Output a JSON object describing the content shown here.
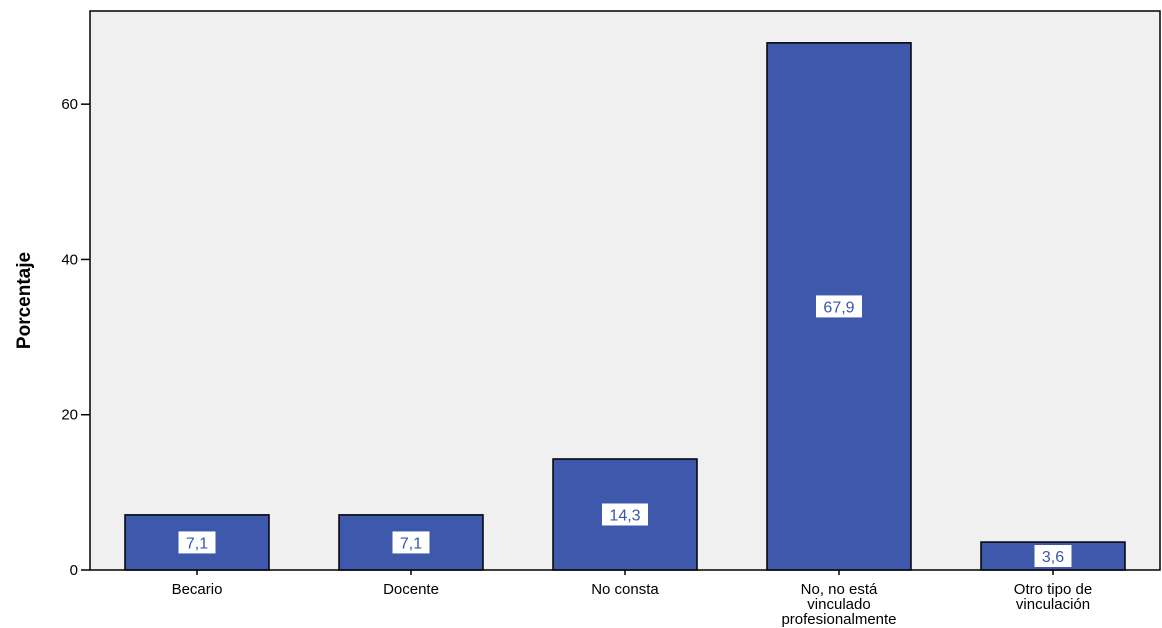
{
  "chart_data": {
    "type": "bar",
    "categories": [
      "Becario",
      "Docente",
      "No consta",
      "No, no está vinculado profesionalmente",
      "Otro tipo de vinculación"
    ],
    "category_lines": [
      [
        "Becario"
      ],
      [
        "Docente"
      ],
      [
        "No consta"
      ],
      [
        "No, no está",
        "vinculado",
        "profesionalmente"
      ],
      [
        "Otro tipo de",
        "vinculación"
      ]
    ],
    "values": [
      7.1,
      7.1,
      14.3,
      67.9,
      3.6
    ],
    "value_labels": [
      "7,1",
      "7,1",
      "14,3",
      "67,9",
      "3,6"
    ],
    "ylabel": "Porcentaje",
    "xlabel": "",
    "ylim": [
      0,
      72
    ],
    "yticks": [
      0,
      20,
      40,
      60
    ],
    "ytick_labels": [
      "0",
      "20",
      "40",
      "60"
    ],
    "grid": false,
    "colors": {
      "bar": "#3e58ab",
      "plot_background": "#f0f0f0",
      "label_text": "#3a56a8"
    }
  }
}
